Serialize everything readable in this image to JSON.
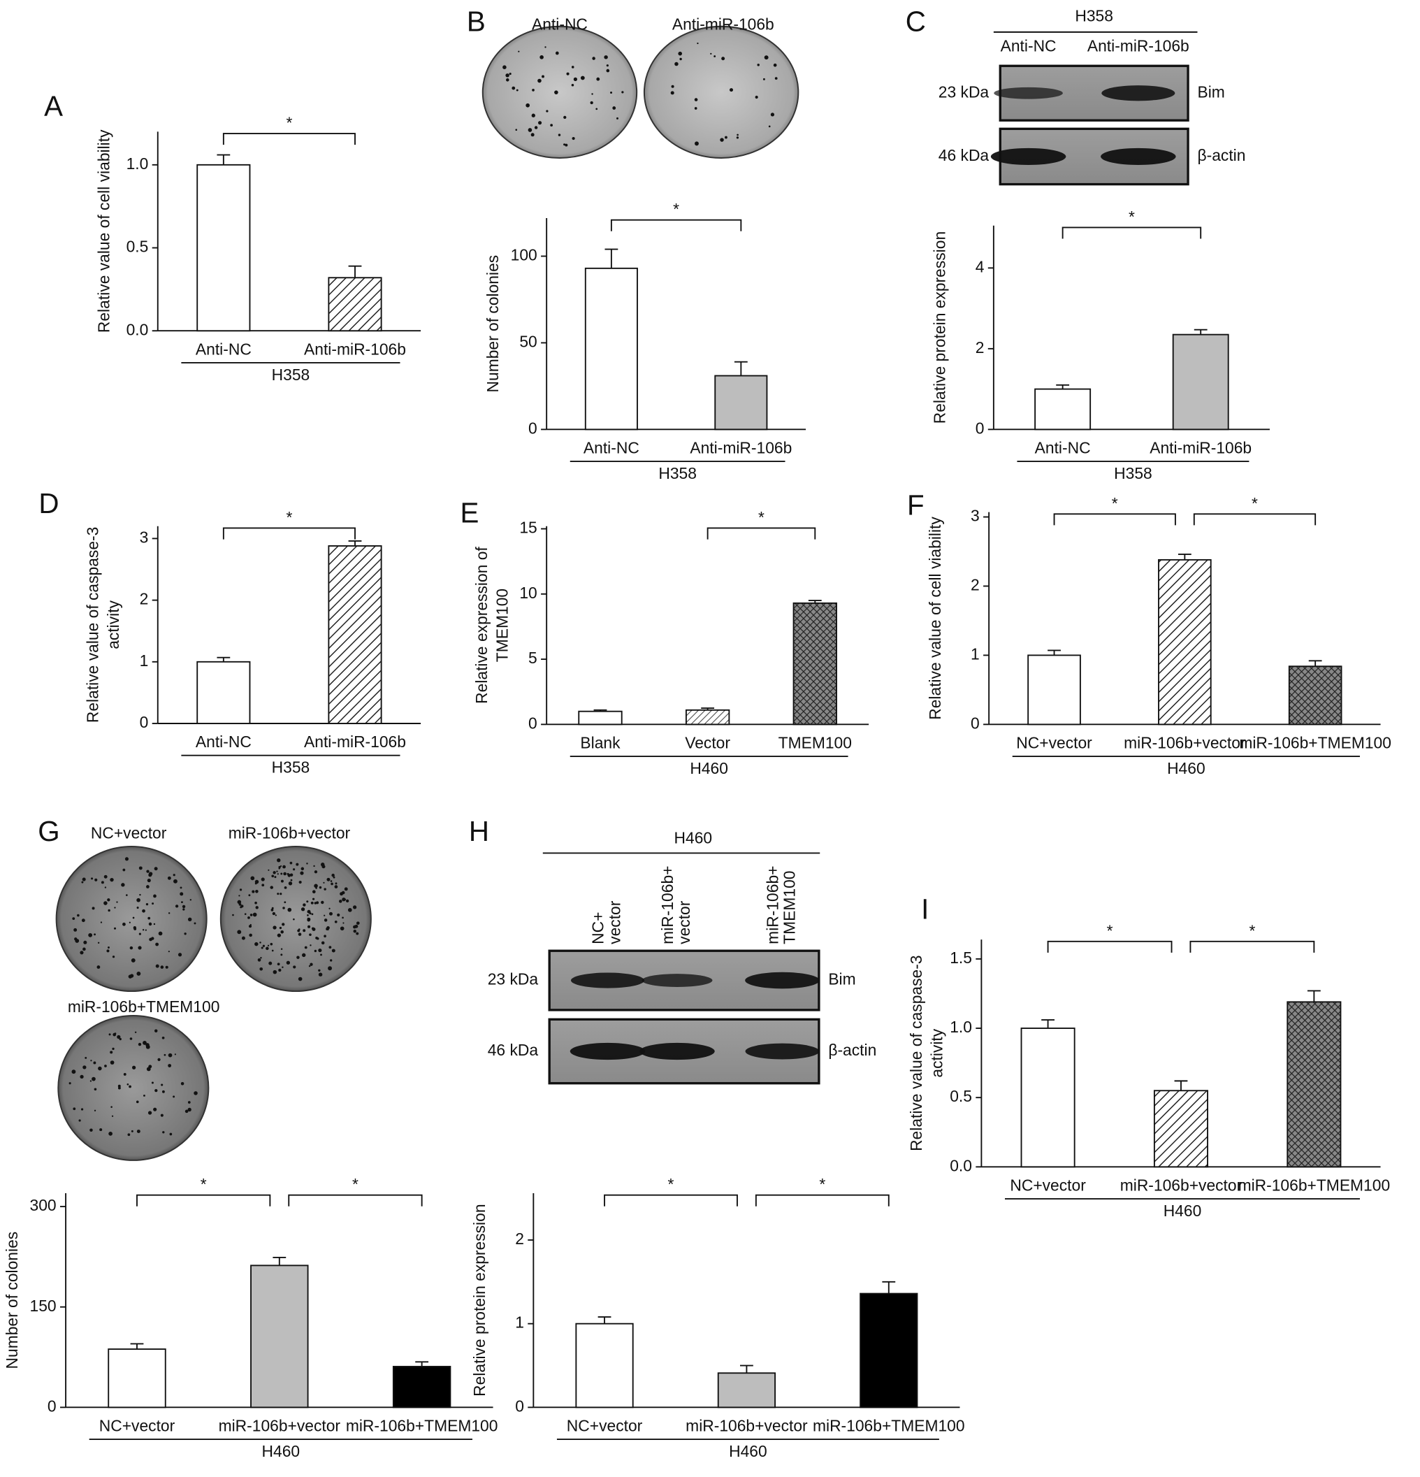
{
  "panel_letters": [
    "A",
    "B",
    "C",
    "D",
    "E",
    "F",
    "G",
    "H",
    "I"
  ],
  "plates": [
    {
      "labels": [
        "Anti-NC",
        "Anti-miR-106b"
      ]
    },
    {
      "labels": [
        "NC+vector",
        "miR-106b+vector",
        "miR-106b+TMEM100"
      ]
    }
  ],
  "blots": [
    {
      "group": "H358",
      "lanes": [
        [
          "Anti-NC"
        ],
        [
          "Anti-miR-106b"
        ]
      ],
      "rows": [
        {
          "size": "23 kDa",
          "protein": "Bim"
        },
        {
          "size": "46 kDa",
          "protein": "β-actin"
        }
      ]
    },
    {
      "group": "H460",
      "lanes": [
        [
          "NC+",
          "vector"
        ],
        [
          "miR-106b+",
          "vector"
        ],
        [
          "miR-106b+",
          "TMEM100"
        ]
      ],
      "rows": [
        {
          "size": "23 kDa",
          "protein": "Bim"
        },
        {
          "size": "46 kDa",
          "protein": "β-actin"
        }
      ]
    }
  ],
  "chart_data": [
    {
      "type": "bar",
      "ylabel": "Relative value of cell viability",
      "categories": [
        "Anti-NC",
        "Anti-miR-106b"
      ],
      "group_label": "H358",
      "values": [
        1.0,
        0.32
      ],
      "errors": [
        0.06,
        0.07
      ],
      "fills": [
        "#ffffff",
        "hatch"
      ],
      "ylim": [
        0,
        1.2
      ],
      "yticks": [
        {
          "value": 0,
          "label": "0.0"
        },
        0.5,
        {
          "value": 1,
          "label": "1.0"
        }
      ],
      "annotations": [
        "*"
      ]
    },
    {
      "type": "bar",
      "ylabel": "Number of colonies",
      "categories": [
        "Anti-NC",
        "Anti-miR-106b"
      ],
      "group_label": "H358",
      "values": [
        93,
        31
      ],
      "errors": [
        11,
        8
      ],
      "fills": [
        "#ffffff",
        "#bdbdbd"
      ],
      "ylim": [
        0,
        122
      ],
      "yticks": [
        0,
        50,
        100
      ],
      "annotations": [
        "*"
      ]
    },
    {
      "type": "bar",
      "ylabel": "Relative protein expression",
      "categories": [
        "Anti-NC",
        "Anti-miR-106b"
      ],
      "group_label": "H358",
      "values": [
        1.0,
        2.35
      ],
      "errors": [
        0.1,
        0.12
      ],
      "fills": [
        "#ffffff",
        "#bdbdbd"
      ],
      "ylim": [
        0,
        5.05
      ],
      "yticks": [
        0,
        2,
        4
      ],
      "annotations": [
        "*"
      ]
    },
    {
      "type": "bar",
      "ylabel": [
        "Relative value of caspase-3",
        "activity"
      ],
      "categories": [
        "Anti-NC",
        "Anti-miR-106b"
      ],
      "group_label": "H358",
      "values": [
        1.0,
        2.88
      ],
      "errors": [
        0.07,
        0.08
      ],
      "fills": [
        "#ffffff",
        "hatch"
      ],
      "ylim": [
        0,
        3.2
      ],
      "yticks": [
        0,
        1,
        2,
        3
      ],
      "annotations": [
        "*"
      ]
    },
    {
      "type": "bar",
      "ylabel": [
        "Relative expression of",
        "TMEM100"
      ],
      "categories": [
        "Blank",
        "Vector",
        "TMEM100"
      ],
      "group_label": "H460",
      "values": [
        1.0,
        1.1,
        9.3
      ],
      "errors": [
        0.1,
        0.15,
        0.2
      ],
      "fills": [
        "#ffffff",
        "finehatch",
        "crosshatch"
      ],
      "ylim": [
        0,
        15.2
      ],
      "yticks": [
        0,
        5,
        10,
        15
      ],
      "annotations": [
        "*"
      ]
    },
    {
      "type": "bar",
      "ylabel": "Relative value of cell viability",
      "categories": [
        "NC+vector",
        "miR-106b+vector",
        "miR-106b+TMEM100"
      ],
      "group_label": "H460",
      "values": [
        1.0,
        2.38,
        0.84
      ],
      "errors": [
        0.07,
        0.08,
        0.08
      ],
      "fills": [
        "#ffffff",
        "hatch",
        "crosshatch"
      ],
      "ylim": [
        0,
        3.07
      ],
      "yticks": [
        0,
        1,
        2,
        3
      ],
      "annotations": [
        "*",
        "*"
      ]
    },
    {
      "type": "bar",
      "ylabel": "Number of colonies",
      "categories": [
        "NC+vector",
        "miR-106b+vector",
        "miR-106b+TMEM100"
      ],
      "group_label": "H460",
      "values": [
        87,
        212,
        61
      ],
      "errors": [
        8,
        12,
        7
      ],
      "fills": [
        "#ffffff",
        "#bdbdbd",
        "#000000"
      ],
      "ylim": [
        0,
        320
      ],
      "yticks": [
        0,
        150,
        300
      ],
      "annotations": [
        "*",
        "*"
      ]
    },
    {
      "type": "bar",
      "ylabel": "Relative protein expression",
      "categories": [
        "NC+vector",
        "miR-106b+vector",
        "miR-106b+TMEM100"
      ],
      "group_label": "H460",
      "values": [
        1.0,
        0.41,
        1.36
      ],
      "errors": [
        0.08,
        0.09,
        0.14
      ],
      "fills": [
        "#ffffff",
        "#bdbdbd",
        "#000000"
      ],
      "ylim": [
        0,
        2.56
      ],
      "yticks": [
        0,
        1,
        2
      ],
      "annotations": [
        "*",
        "*"
      ]
    },
    {
      "type": "bar",
      "ylabel": [
        "Relative value of caspase-3",
        "activity"
      ],
      "categories": [
        "NC+vector",
        "miR-106b+vector",
        "miR-106b+TMEM100"
      ],
      "group_label": "H460",
      "values": [
        1.0,
        0.55,
        1.19
      ],
      "errors": [
        0.06,
        0.07,
        0.08
      ],
      "fills": [
        "#ffffff",
        "hatch",
        "crosshatch"
      ],
      "ylim": [
        0,
        1.64
      ],
      "yticks": [
        {
          "value": 0,
          "label": "0.0"
        },
        0.5,
        {
          "value": 1,
          "label": "1.0"
        },
        1.5
      ],
      "annotations": [
        "*",
        "*"
      ]
    }
  ]
}
